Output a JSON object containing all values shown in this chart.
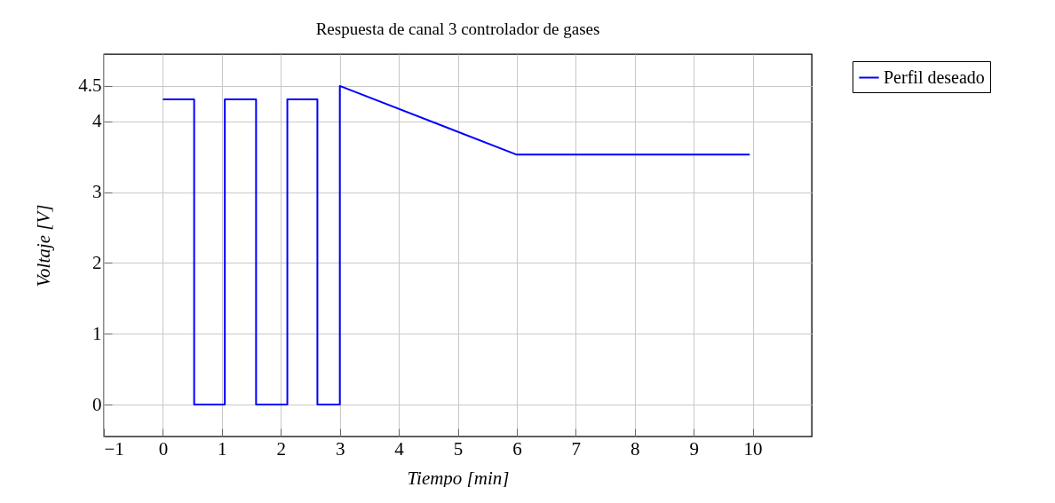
{
  "chart_data": {
    "type": "line",
    "title": "Respuesta de canal 3 controlador de gases",
    "xlabel": "Tiempo [min]",
    "ylabel": "Voltaje [V]",
    "x": [
      0,
      0.53,
      0.53,
      1.05,
      1.05,
      1.58,
      1.58,
      2.11,
      2.11,
      2.62,
      2.62,
      3,
      3,
      6,
      9.95
    ],
    "series": [
      {
        "name": "Perfil deseado",
        "color": "#0000ff",
        "values": [
          4.31,
          4.31,
          0,
          0,
          4.31,
          4.31,
          0,
          0,
          4.31,
          4.31,
          0,
          0,
          4.5,
          3.53,
          3.53
        ]
      }
    ],
    "xlim": [
      -1,
      11
    ],
    "xticks": [
      -1,
      0,
      1,
      2,
      3,
      4,
      5,
      6,
      7,
      8,
      9,
      10
    ],
    "ylim": [
      -0.45,
      4.95
    ],
    "yticks": [
      0,
      1,
      2,
      3,
      4,
      4.5
    ],
    "grid": true,
    "legend": "top right",
    "marker": "none",
    "line_style": "solid"
  }
}
